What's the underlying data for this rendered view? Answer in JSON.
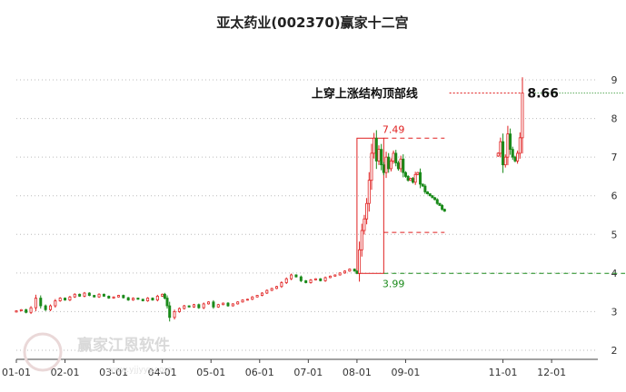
{
  "chart_data": {
    "type": "candlestick",
    "title": "亚太药业(002370)赢家十二宫",
    "ylim": [
      2,
      9
    ],
    "y_ticks": [
      2,
      3,
      4,
      5,
      6,
      7,
      8,
      9
    ],
    "x_ticks": [
      "01-01",
      "02-01",
      "03-01",
      "04-01",
      "05-01",
      "06-01",
      "07-01",
      "08-01",
      "09-01",
      "11-01",
      "12-01"
    ],
    "x_tick_months": [
      0,
      1,
      2,
      3,
      4,
      5,
      6,
      7,
      8,
      10,
      11
    ],
    "month_range": [
      0,
      11.95
    ],
    "series": [
      {
        "month": 0.0,
        "close": 3.02
      },
      {
        "month": 0.1,
        "close": 3.05
      },
      {
        "month": 0.2,
        "close": 2.98
      },
      {
        "month": 0.3,
        "close": 3.1
      },
      {
        "month": 0.4,
        "close": 3.35
      },
      {
        "month": 0.5,
        "close": 3.15
      },
      {
        "month": 0.6,
        "close": 3.05
      },
      {
        "month": 0.7,
        "close": 3.15
      },
      {
        "month": 0.8,
        "close": 3.28
      },
      {
        "month": 0.9,
        "close": 3.35
      },
      {
        "month": 1.0,
        "close": 3.3
      },
      {
        "month": 1.1,
        "close": 3.38
      },
      {
        "month": 1.2,
        "close": 3.45
      },
      {
        "month": 1.3,
        "close": 3.4
      },
      {
        "month": 1.4,
        "close": 3.48
      },
      {
        "month": 1.5,
        "close": 3.42
      },
      {
        "month": 1.6,
        "close": 3.38
      },
      {
        "month": 1.7,
        "close": 3.45
      },
      {
        "month": 1.8,
        "close": 3.4
      },
      {
        "month": 1.9,
        "close": 3.35
      },
      {
        "month": 2.0,
        "close": 3.38
      },
      {
        "month": 2.1,
        "close": 3.42
      },
      {
        "month": 2.2,
        "close": 3.36
      },
      {
        "month": 2.3,
        "close": 3.3
      },
      {
        "month": 2.4,
        "close": 3.35
      },
      {
        "month": 2.5,
        "close": 3.32
      },
      {
        "month": 2.6,
        "close": 3.28
      },
      {
        "month": 2.7,
        "close": 3.35
      },
      {
        "month": 2.8,
        "close": 3.3
      },
      {
        "month": 2.9,
        "close": 3.4
      },
      {
        "month": 3.0,
        "close": 3.45
      },
      {
        "month": 3.05,
        "close": 3.35
      },
      {
        "month": 3.1,
        "close": 3.15
      },
      {
        "month": 3.15,
        "close": 2.85
      },
      {
        "month": 3.25,
        "close": 3.0
      },
      {
        "month": 3.35,
        "close": 3.08
      },
      {
        "month": 3.45,
        "close": 3.15
      },
      {
        "month": 3.55,
        "close": 3.12
      },
      {
        "month": 3.65,
        "close": 3.18
      },
      {
        "month": 3.75,
        "close": 3.1
      },
      {
        "month": 3.85,
        "close": 3.2
      },
      {
        "month": 3.95,
        "close": 3.25
      },
      {
        "month": 4.05,
        "close": 3.12
      },
      {
        "month": 4.15,
        "close": 3.18
      },
      {
        "month": 4.25,
        "close": 3.22
      },
      {
        "month": 4.35,
        "close": 3.15
      },
      {
        "month": 4.45,
        "close": 3.2
      },
      {
        "month": 4.55,
        "close": 3.25
      },
      {
        "month": 4.65,
        "close": 3.3
      },
      {
        "month": 4.75,
        "close": 3.32
      },
      {
        "month": 4.85,
        "close": 3.38
      },
      {
        "month": 4.95,
        "close": 3.42
      },
      {
        "month": 5.05,
        "close": 3.48
      },
      {
        "month": 5.15,
        "close": 3.55
      },
      {
        "month": 5.25,
        "close": 3.6
      },
      {
        "month": 5.35,
        "close": 3.65
      },
      {
        "month": 5.45,
        "close": 3.75
      },
      {
        "month": 5.55,
        "close": 3.85
      },
      {
        "month": 5.65,
        "close": 3.95
      },
      {
        "month": 5.75,
        "close": 3.9
      },
      {
        "month": 5.85,
        "close": 3.8
      },
      {
        "month": 5.95,
        "close": 3.75
      },
      {
        "month": 6.05,
        "close": 3.82
      },
      {
        "month": 6.15,
        "close": 3.85
      },
      {
        "month": 6.25,
        "close": 3.8
      },
      {
        "month": 6.35,
        "close": 3.88
      },
      {
        "month": 6.45,
        "close": 3.92
      },
      {
        "month": 6.55,
        "close": 3.95
      },
      {
        "month": 6.65,
        "close": 4.0
      },
      {
        "month": 6.75,
        "close": 4.05
      },
      {
        "month": 6.85,
        "close": 4.1
      },
      {
        "month": 6.95,
        "close": 4.05
      },
      {
        "month": 7.0,
        "close": 3.99
      },
      {
        "month": 7.05,
        "close": 4.6
      },
      {
        "month": 7.1,
        "close": 5.1
      },
      {
        "month": 7.15,
        "close": 5.4
      },
      {
        "month": 7.2,
        "close": 5.8
      },
      {
        "month": 7.25,
        "close": 6.4
      },
      {
        "month": 7.3,
        "close": 7.1
      },
      {
        "month": 7.35,
        "close": 7.49
      },
      {
        "month": 7.4,
        "close": 6.9
      },
      {
        "month": 7.45,
        "close": 7.2
      },
      {
        "month": 7.5,
        "close": 6.8
      },
      {
        "month": 7.55,
        "close": 6.6
      },
      {
        "month": 7.6,
        "close": 7.0
      },
      {
        "month": 7.65,
        "close": 6.7
      },
      {
        "month": 7.7,
        "close": 6.9
      },
      {
        "month": 7.75,
        "close": 7.1
      },
      {
        "month": 7.8,
        "close": 6.85
      },
      {
        "month": 7.85,
        "close": 6.7
      },
      {
        "month": 7.9,
        "close": 6.95
      },
      {
        "month": 7.95,
        "close": 6.6
      },
      {
        "month": 8.0,
        "close": 6.5
      },
      {
        "month": 8.05,
        "close": 6.4
      },
      {
        "month": 8.1,
        "close": 6.45
      },
      {
        "month": 8.15,
        "close": 6.35
      },
      {
        "month": 8.2,
        "close": 6.55
      },
      {
        "month": 8.25,
        "close": 6.6
      },
      {
        "month": 8.3,
        "close": 6.3
      },
      {
        "month": 8.35,
        "close": 6.25
      },
      {
        "month": 8.4,
        "close": 6.1
      },
      {
        "month": 8.45,
        "close": 6.05
      },
      {
        "month": 8.5,
        "close": 6.0
      },
      {
        "month": 8.55,
        "close": 5.95
      },
      {
        "month": 8.6,
        "close": 5.9
      },
      {
        "month": 8.65,
        "close": 5.8
      },
      {
        "month": 8.7,
        "close": 5.75
      },
      {
        "month": 8.75,
        "close": 5.65
      },
      {
        "month": 8.8,
        "close": 5.6
      },
      {
        "month": 9.9,
        "close": 7.1
      },
      {
        "month": 9.95,
        "close": 7.4
      },
      {
        "month": 10.0,
        "close": 6.8
      },
      {
        "month": 10.05,
        "close": 7.0
      },
      {
        "month": 10.1,
        "close": 7.6
      },
      {
        "month": 10.15,
        "close": 7.2
      },
      {
        "month": 10.2,
        "close": 7.0
      },
      {
        "month": 10.25,
        "close": 6.9
      },
      {
        "month": 10.3,
        "close": 7.1
      },
      {
        "month": 10.35,
        "close": 7.5
      },
      {
        "month": 10.4,
        "close": 8.66
      }
    ],
    "annotations": {
      "resistance_label": "上穿上涨结构顶部线",
      "resistance_value": "8.66",
      "peak_value": "7.49",
      "base_value": "3.99"
    },
    "watermark": {
      "text": "赢家江恩软件",
      "url": "www.yjjyyy.com"
    },
    "colors": {
      "up": "#e02020",
      "down": "#1a8a1a",
      "grid": "#bbbbbb"
    }
  }
}
